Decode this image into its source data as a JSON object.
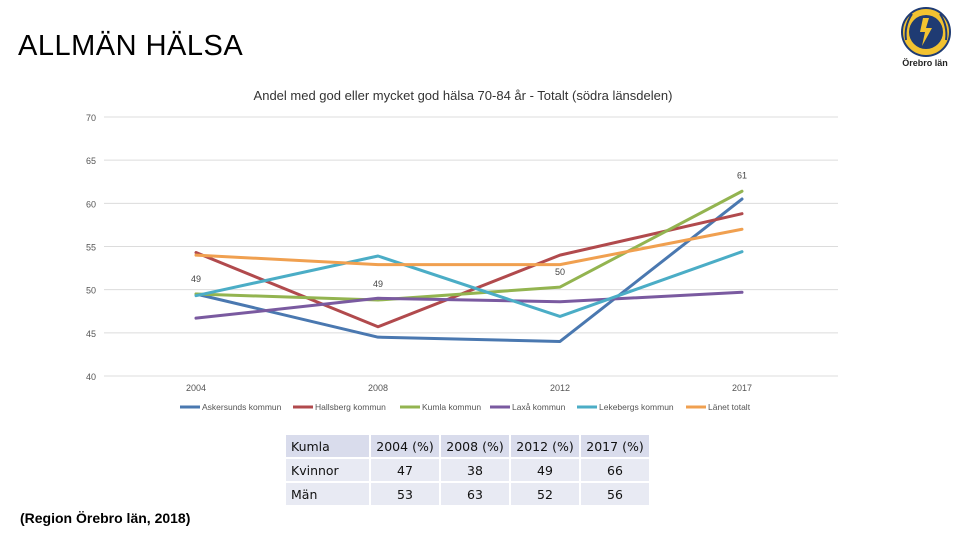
{
  "slide": {
    "title": "ALLMÄN HÄLSA",
    "source": "(Region Örebro län, 2018)",
    "logo_text": "Örebro län",
    "logo_icon": "sisu-wreath-logo-icon"
  },
  "chart_data": {
    "type": "line",
    "title": "Andel med god eller mycket god hälsa 70-84 år - Totalt (södra länsdelen)",
    "xlabel": "",
    "ylabel": "",
    "categories": [
      "2004",
      "2008",
      "2012",
      "2017"
    ],
    "ylim": [
      40,
      70
    ],
    "yticks": [
      70,
      65,
      60,
      55,
      50,
      45,
      40
    ],
    "grid": true,
    "legend_position": "bottom",
    "series": [
      {
        "name": "Askersunds kommun",
        "color": "#4a78b0",
        "values": [
          49.5,
          44.5,
          44,
          60.5
        ]
      },
      {
        "name": "Hallsberg kommun",
        "color": "#b14a4d",
        "values": [
          54.3,
          45.7,
          54,
          58.8
        ]
      },
      {
        "name": "Kumla kommun",
        "color": "#93b450",
        "values": [
          49.5,
          48.8,
          50.3,
          61.4
        ]
      },
      {
        "name": "Laxå kommun",
        "color": "#7a5aa0",
        "values": [
          46.7,
          49,
          48.6,
          49.7
        ]
      },
      {
        "name": "Lekebergs kommun",
        "color": "#4badc6",
        "values": [
          49.3,
          53.9,
          46.9,
          54.4
        ]
      },
      {
        "name": "Länet totalt",
        "color": "#f0a050",
        "values": [
          54,
          52.9,
          52.9,
          57
        ]
      }
    ],
    "annotations": [
      {
        "text": "49",
        "x": "2004",
        "y": 50.9
      },
      {
        "text": "49",
        "x": "2008",
        "y": 50.3
      },
      {
        "text": "50",
        "x": "2012",
        "y": 51.7
      },
      {
        "text": "61",
        "x": "2017",
        "y": 62.9
      }
    ]
  },
  "table": {
    "header": [
      "Kumla",
      "2004 (%)",
      "2008 (%)",
      "2012 (%)",
      "2017 (%)"
    ],
    "rows": [
      [
        "Kvinnor",
        "47",
        "38",
        "49",
        "66"
      ],
      [
        "Män",
        "53",
        "63",
        "52",
        "56"
      ]
    ]
  }
}
